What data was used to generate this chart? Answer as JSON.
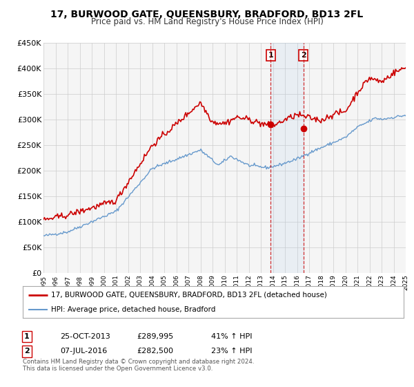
{
  "title": "17, BURWOOD GATE, QUEENSBURY, BRADFORD, BD13 2FL",
  "subtitle": "Price paid vs. HM Land Registry's House Price Index (HPI)",
  "legend_line1": "17, BURWOOD GATE, QUEENSBURY, BRADFORD, BD13 2FL (detached house)",
  "legend_line2": "HPI: Average price, detached house, Bradford",
  "sale1_label": "1",
  "sale1_date": "25-OCT-2013",
  "sale1_price": "£289,995",
  "sale1_hpi": "41% ↑ HPI",
  "sale1_year": 2013.82,
  "sale1_value": 289995,
  "sale2_label": "2",
  "sale2_date": "07-JUL-2016",
  "sale2_price": "£282,500",
  "sale2_hpi": "23% ↑ HPI",
  "sale2_year": 2016.52,
  "sale2_value": 282500,
  "red_color": "#cc0000",
  "blue_color": "#6699cc",
  "background_color": "#ffffff",
  "grid_color": "#cccccc",
  "footer_line1": "Contains HM Land Registry data © Crown copyright and database right 2024.",
  "footer_line2": "This data is licensed under the Open Government Licence v3.0.",
  "ylim": [
    0,
    450000
  ],
  "xlim_start": 1995,
  "xlim_end": 2025
}
